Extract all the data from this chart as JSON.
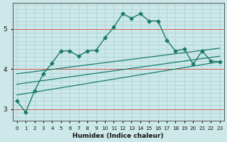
{
  "xlabel": "Humidex (Indice chaleur)",
  "background_color": "#cce8e8",
  "grid_color_minor": "#aed4d4",
  "grid_color_major": "#cc4444",
  "line_color": "#1a7a6a",
  "xlim": [
    -0.5,
    23.5
  ],
  "ylim": [
    2.7,
    5.65
  ],
  "yticks": [
    3,
    4,
    5
  ],
  "xticks": [
    0,
    1,
    2,
    3,
    4,
    5,
    6,
    7,
    8,
    9,
    10,
    11,
    12,
    13,
    14,
    15,
    16,
    17,
    18,
    19,
    20,
    21,
    22,
    23
  ],
  "main_x": [
    0,
    1,
    2,
    3,
    4,
    5,
    6,
    7,
    8,
    9,
    10,
    11,
    12,
    13,
    14,
    15,
    16,
    17,
    18,
    19,
    20,
    21,
    22,
    23
  ],
  "main_y": [
    3.2,
    2.92,
    3.45,
    3.88,
    4.15,
    4.45,
    4.45,
    4.32,
    4.45,
    4.47,
    4.78,
    5.05,
    5.38,
    5.27,
    5.38,
    5.2,
    5.2,
    4.72,
    4.45,
    4.5,
    4.12,
    4.45,
    4.2,
    4.18
  ],
  "straight_lines": [
    {
      "x0": 0,
      "x1": 23,
      "y0": 3.88,
      "y1": 4.52
    },
    {
      "x0": 0,
      "x1": 23,
      "y0": 3.62,
      "y1": 4.32
    },
    {
      "x0": 0,
      "x1": 23,
      "y0": 3.35,
      "y1": 4.18
    }
  ]
}
